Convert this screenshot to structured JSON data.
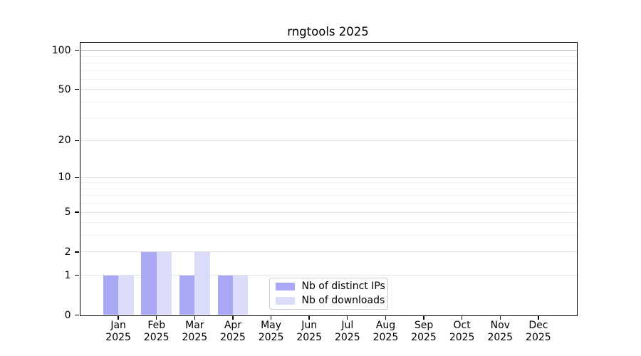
{
  "chart_data": {
    "type": "bar",
    "title": "rngtools 2025",
    "categories": [
      "Jan",
      "Feb",
      "Mar",
      "Apr",
      "May",
      "Jun",
      "Jul",
      "Aug",
      "Sep",
      "Oct",
      "Nov",
      "Dec"
    ],
    "category_sub_label": "2025",
    "series": [
      {
        "name": "Nb of distinct IPs",
        "color": "#a8a8f4",
        "values": [
          1,
          2,
          1,
          1,
          0,
          0,
          0,
          0,
          0,
          0,
          0,
          0
        ]
      },
      {
        "name": "Nb of downloads",
        "color": "#dbdbfa",
        "values": [
          1,
          2,
          2,
          1,
          0,
          0,
          0,
          0,
          0,
          0,
          0,
          0
        ]
      }
    ],
    "xlabel": "",
    "ylabel": "",
    "yscale": "log1p",
    "ylim": [
      0,
      115
    ],
    "y_ticks": [
      0,
      1,
      2,
      5,
      10,
      20,
      50,
      100
    ],
    "y_minor_ticks": [
      3,
      4,
      6,
      7,
      8,
      9,
      30,
      40,
      60,
      70,
      80,
      90
    ],
    "grid": "horizontal major+minor",
    "legend_position": "lower center",
    "bar_width_fraction": 0.4,
    "colors": {
      "axis": "#000000",
      "grid_major": "#e3e3e3",
      "grid_minor": "#f0f0f0",
      "grid_top": "#b0b0b0",
      "legend_border": "#cccccc",
      "background": "#ffffff",
      "text": "#000000"
    }
  }
}
